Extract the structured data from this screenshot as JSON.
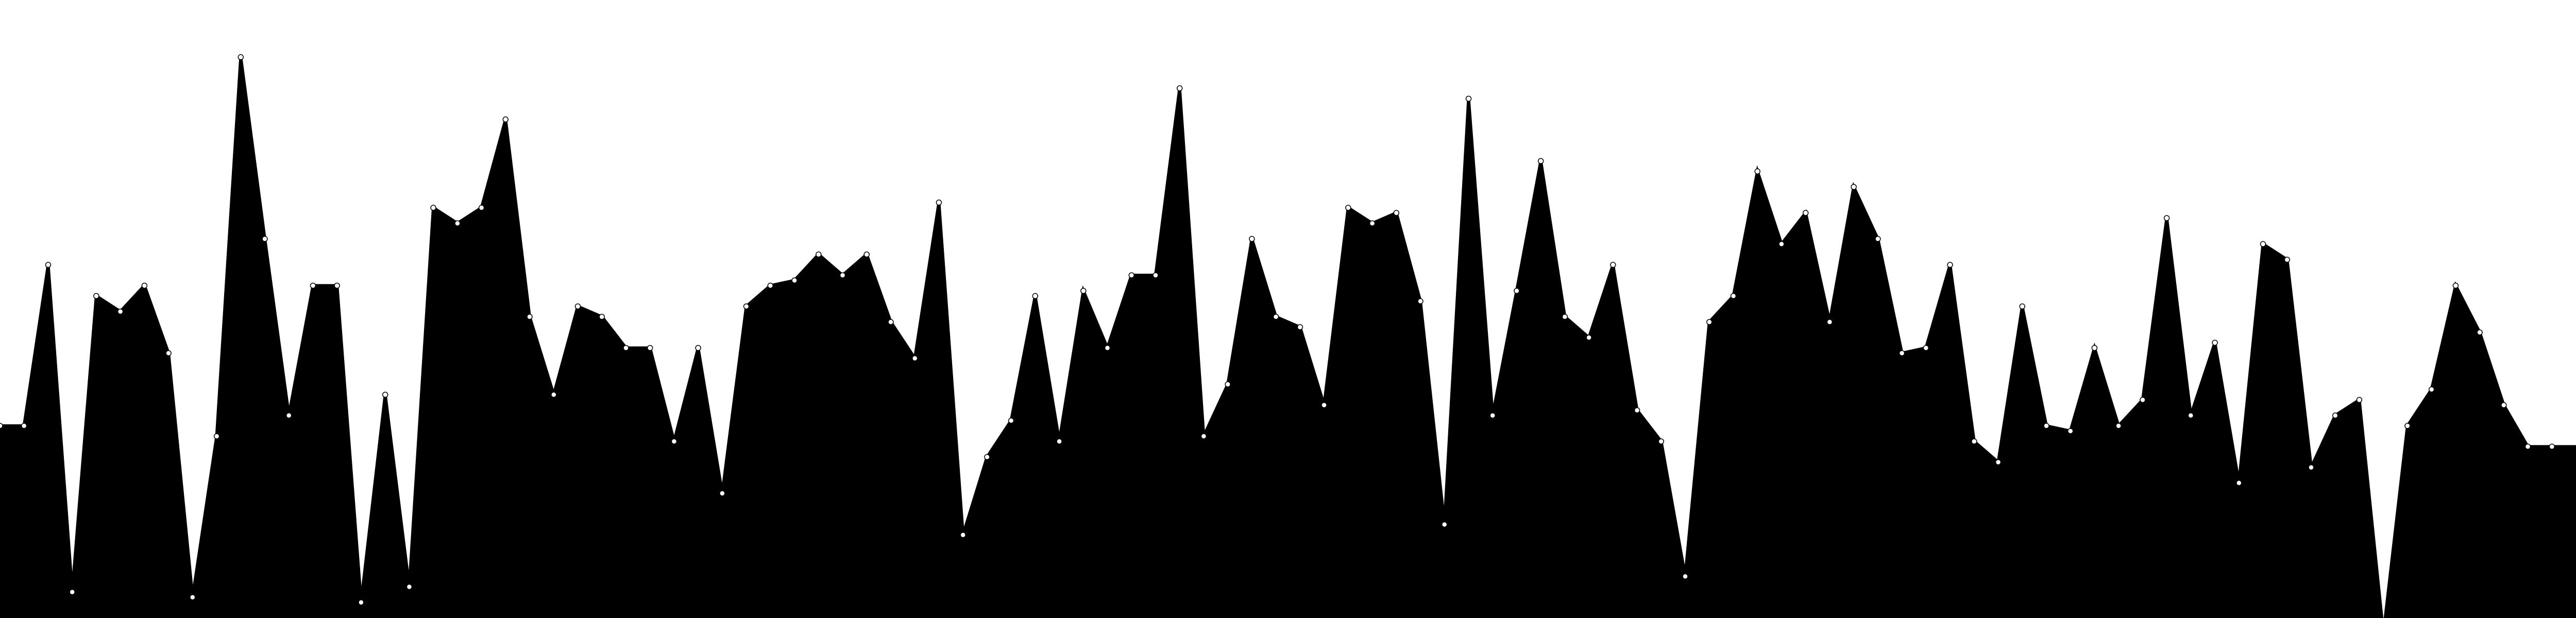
{
  "chart_data": {
    "type": "area",
    "title": "",
    "xlabel": "",
    "ylabel": "",
    "x": [
      0,
      1,
      2,
      3,
      4,
      5,
      6,
      7,
      8,
      9,
      10,
      11,
      12,
      13,
      14,
      15,
      16,
      17,
      18,
      19,
      20,
      21,
      22,
      23,
      24,
      25,
      26,
      27,
      28,
      29,
      30,
      31,
      32,
      33,
      34,
      35,
      36,
      37,
      38,
      39,
      40,
      41,
      42,
      43,
      44,
      45,
      46,
      47,
      48,
      49,
      50,
      51,
      52,
      53,
      54,
      55,
      56,
      57,
      58,
      59,
      60,
      61,
      62,
      63,
      64,
      65,
      66,
      67,
      68,
      69,
      70,
      71,
      72,
      73,
      74,
      75,
      76,
      77,
      78,
      79,
      80,
      81,
      82,
      83,
      84,
      85,
      86,
      87,
      88,
      89,
      90,
      91,
      92,
      93,
      94,
      95,
      96,
      97,
      98,
      99,
      100,
      101,
      102,
      103,
      104,
      105,
      106,
      107
    ],
    "values": [
      3.7,
      3.7,
      6.8,
      0.5,
      6.2,
      5.9,
      6.4,
      5.1,
      0.4,
      3.5,
      10.8,
      7.3,
      3.9,
      6.4,
      6.4,
      0.3,
      4.3,
      0.6,
      7.9,
      7.6,
      7.9,
      9.6,
      5.8,
      4.3,
      6.0,
      5.8,
      5.2,
      5.2,
      3.4,
      5.2,
      2.4,
      6.0,
      6.4,
      6.5,
      7.0,
      6.6,
      7.0,
      5.7,
      5.0,
      8.0,
      1.6,
      3.1,
      3.8,
      6.2,
      3.4,
      6.3,
      5.2,
      6.6,
      6.6,
      10.2,
      3.5,
      4.5,
      7.3,
      5.8,
      5.6,
      4.1,
      7.9,
      7.6,
      7.8,
      6.1,
      1.8,
      10.0,
      3.9,
      6.3,
      8.8,
      5.8,
      5.4,
      6.8,
      4.0,
      3.4,
      0.8,
      5.7,
      6.2,
      8.6,
      7.2,
      7.8,
      5.7,
      8.3,
      7.3,
      5.1,
      5.2,
      6.8,
      3.4,
      3.0,
      6.0,
      3.7,
      3.6,
      5.2,
      3.7,
      4.2,
      7.7,
      3.9,
      5.3,
      2.6,
      7.2,
      6.9,
      2.9,
      3.9,
      4.2,
      -0.3,
      3.7,
      4.4,
      6.4,
      5.5,
      4.1,
      3.3,
      3.3,
      3.3
    ],
    "xlim": [
      0,
      107
    ],
    "ylim": [
      0,
      11.9
    ],
    "grid": false,
    "legend": "none",
    "colors": {
      "fill": "#000000",
      "point_fill": "#ffffff",
      "point_stroke": "#000000",
      "background": "#ffffff"
    }
  }
}
